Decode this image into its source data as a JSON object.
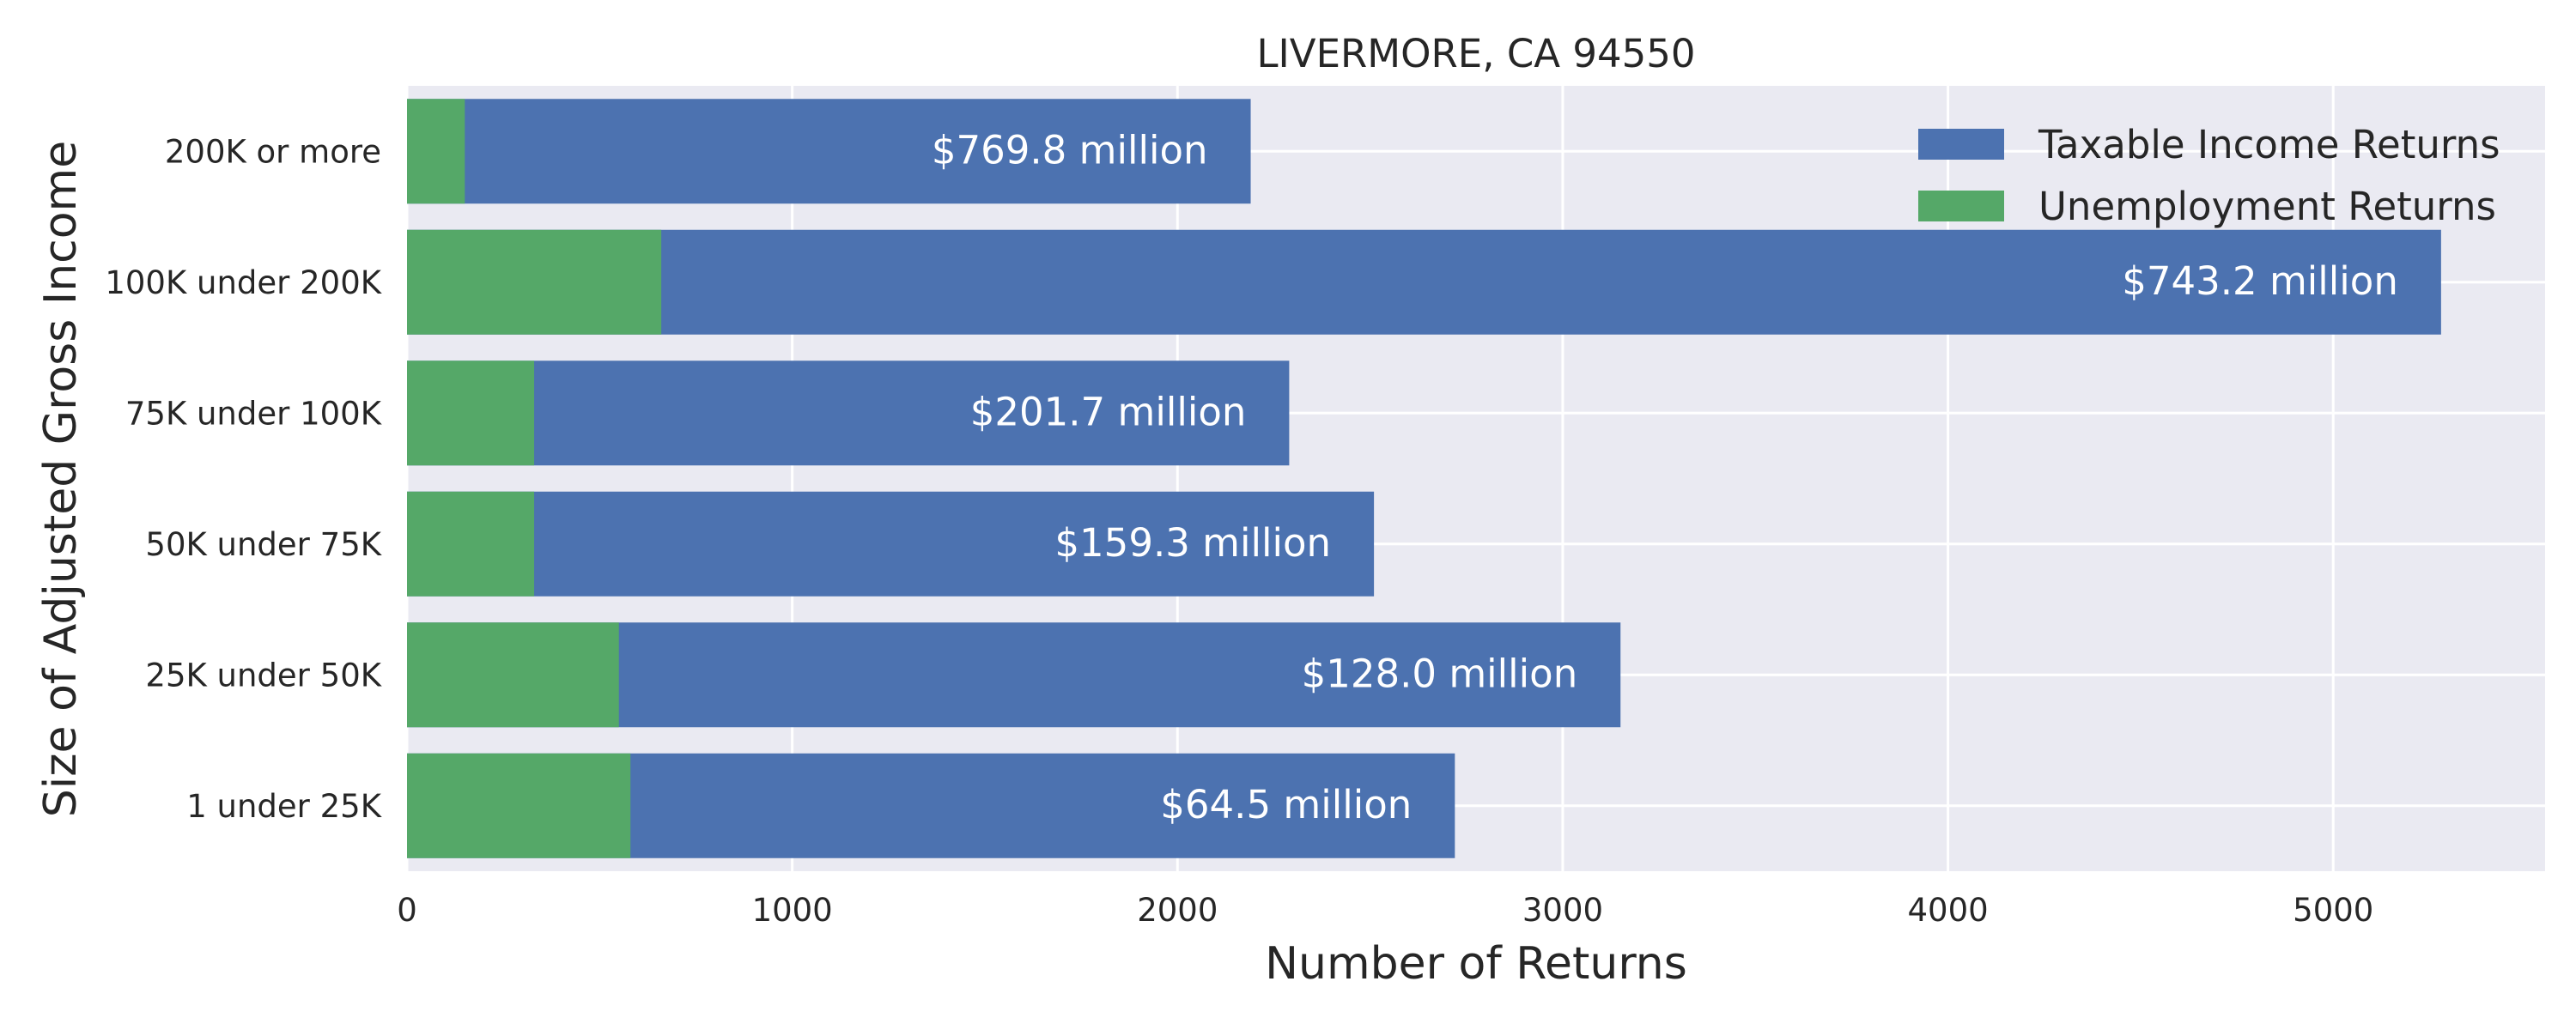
{
  "chart_data": {
    "type": "bar",
    "orientation": "horizontal",
    "stacked": false,
    "title": "LIVERMORE, CA 94550",
    "xlabel": "Number of Returns",
    "ylabel": "Size of Adjusted Gross Income",
    "xlim": [
      0,
      5550
    ],
    "x_ticks": [
      0,
      1000,
      2000,
      3000,
      4000,
      5000
    ],
    "x_tick_labels": [
      "0",
      "1000",
      "2000",
      "3000",
      "4000",
      "5000"
    ],
    "categories": [
      "1 under 25K",
      "25K under 50K",
      "50K under 75K",
      "75K under 100K",
      "100K under 200K",
      "200K or more"
    ],
    "series": [
      {
        "name": "Taxable Income Returns",
        "color": "#4c72b0",
        "values": [
          2720,
          3150,
          2510,
          2290,
          5280,
          2190
        ],
        "labels": [
          "$64.5 million",
          "$128.0 million",
          "$159.3 million",
          "$201.7 million",
          "$743.2 million",
          "$769.8 million"
        ]
      },
      {
        "name": "Unemployment Returns",
        "color": "#55a868",
        "values": [
          580,
          550,
          330,
          330,
          660,
          150
        ]
      }
    ],
    "grid": true,
    "legend_position": "top-right",
    "background": "#eaeaf2"
  }
}
